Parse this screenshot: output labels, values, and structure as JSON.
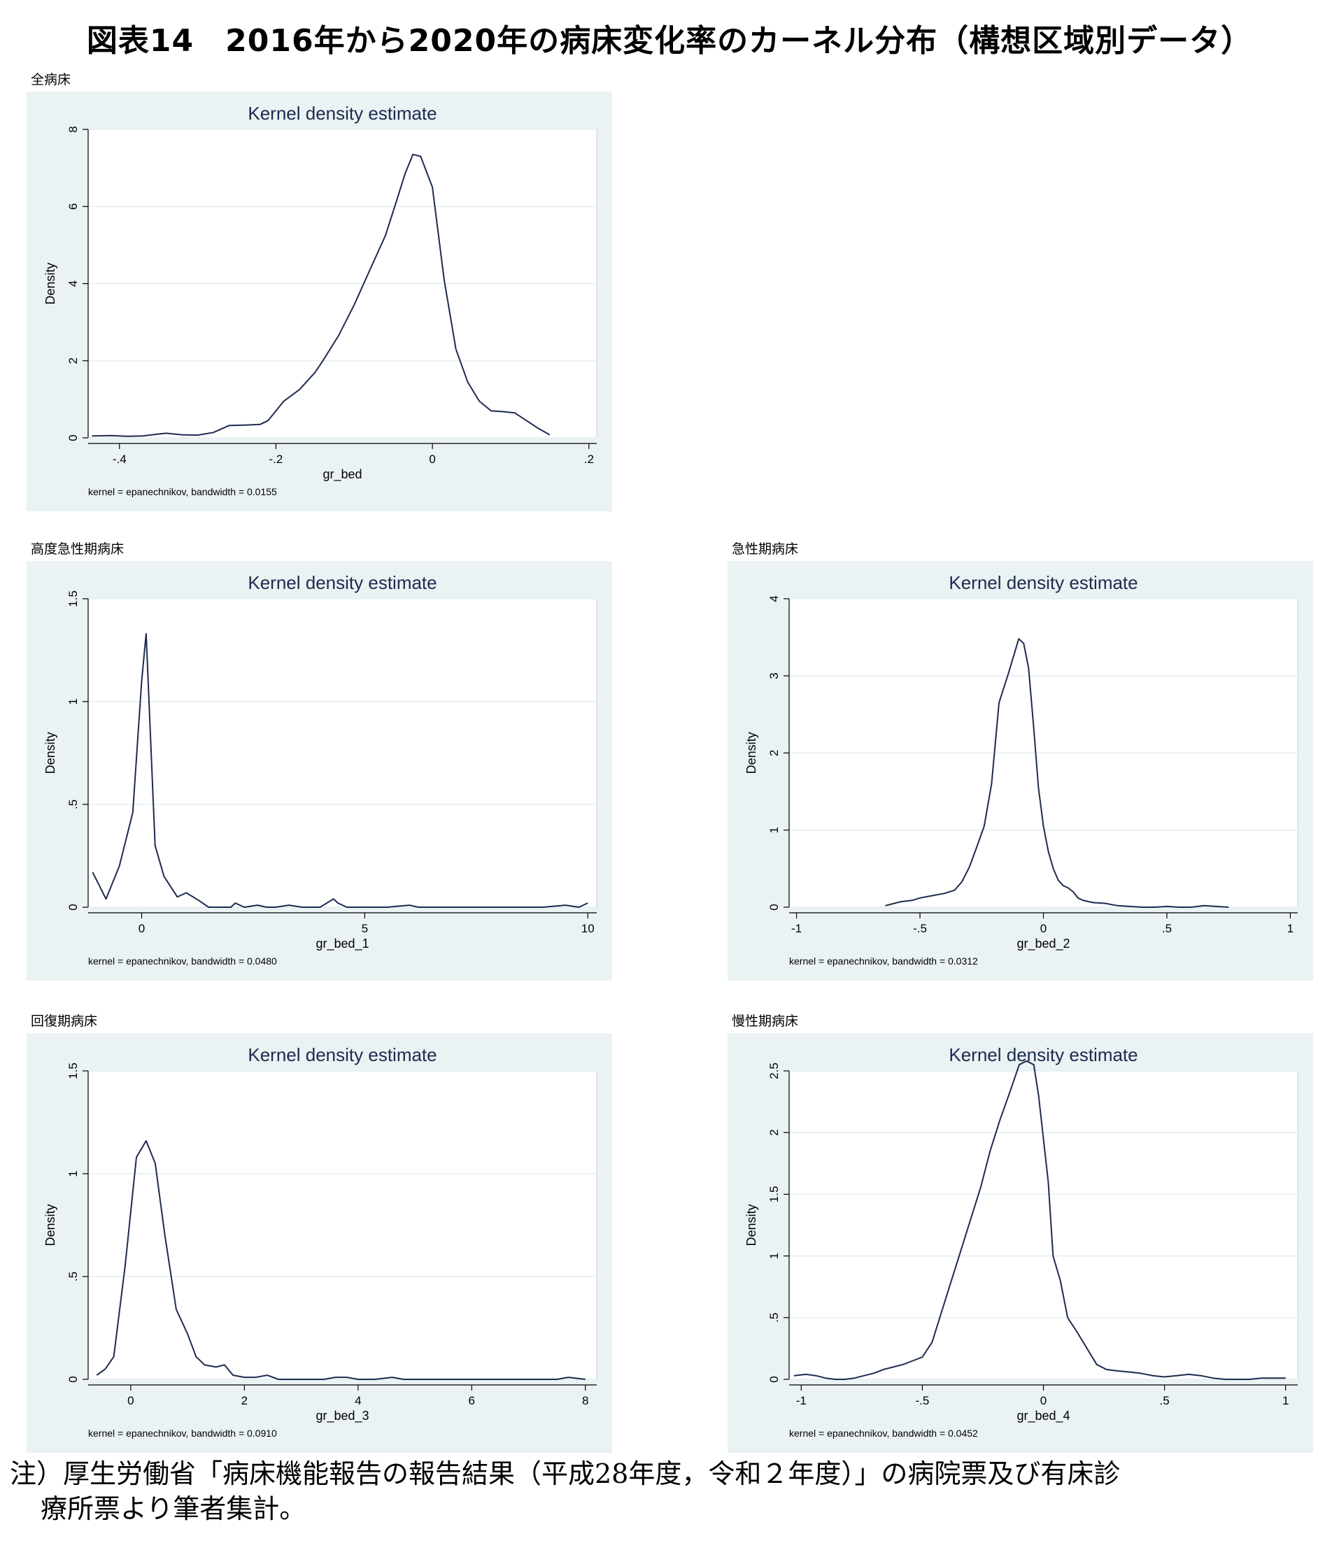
{
  "figure_title": "図表14　2016年から2020年の病床変化率のカーネル分布（構想区域別データ）",
  "note": {
    "line1": "注）厚生労働省「病床機能報告の報告結果（平成28年度，令和２年度）」の病院票及び有床診",
    "line2": "療所票より筆者集計。"
  },
  "colors": {
    "panel_bg": "#eaf2f3",
    "line": "#1d2b4f",
    "grid": "#e6eef0",
    "title": "#1d2b4f"
  },
  "chart_data": [
    {
      "label": "全病床",
      "type": "line",
      "title": "Kernel density estimate",
      "xlabel": "gr_bed",
      "ylabel": "Density",
      "caption": "kernel = epanechnikov, bandwidth = 0.0155",
      "xlim": [
        -0.44,
        0.21
      ],
      "ylim": [
        0,
        8
      ],
      "xticks": [
        {
          "v": -0.4,
          "l": "-.4"
        },
        {
          "v": -0.2,
          "l": "-.2"
        },
        {
          "v": 0,
          "l": "0"
        },
        {
          "v": 0.2,
          "l": ".2"
        }
      ],
      "yticks": [
        {
          "v": 0,
          "l": "0"
        },
        {
          "v": 2,
          "l": "2"
        },
        {
          "v": 4,
          "l": "4"
        },
        {
          "v": 6,
          "l": "6"
        },
        {
          "v": 8,
          "l": "8"
        }
      ],
      "x": [
        -0.435,
        -0.41,
        -0.39,
        -0.37,
        -0.35,
        -0.34,
        -0.32,
        -0.3,
        -0.28,
        -0.26,
        -0.24,
        -0.22,
        -0.21,
        -0.19,
        -0.17,
        -0.15,
        -0.14,
        -0.12,
        -0.1,
        -0.08,
        -0.06,
        -0.045,
        -0.035,
        -0.025,
        -0.015,
        0,
        0.015,
        0.03,
        0.045,
        0.06,
        0.075,
        0.09,
        0.105,
        0.12,
        0.135,
        0.15
      ],
      "y": [
        0.05,
        0.06,
        0.04,
        0.05,
        0.1,
        0.12,
        0.08,
        0.07,
        0.14,
        0.32,
        0.33,
        0.35,
        0.45,
        0.95,
        1.25,
        1.7,
        2.0,
        2.65,
        3.45,
        4.35,
        5.25,
        6.2,
        6.85,
        7.35,
        7.3,
        6.5,
        4.1,
        2.3,
        1.45,
        0.95,
        0.7,
        0.68,
        0.65,
        0.45,
        0.25,
        0.08
      ]
    },
    {
      "label": "高度急性期病床",
      "type": "line",
      "title": "Kernel density estimate",
      "xlabel": "gr_bed_1",
      "ylabel": "Density",
      "caption": "kernel = epanechnikov, bandwidth = 0.0480",
      "xlim": [
        -1.2,
        10.2
      ],
      "ylim": [
        0,
        1.5
      ],
      "xticks": [
        {
          "v": 0,
          "l": "0"
        },
        {
          "v": 5,
          "l": "5"
        },
        {
          "v": 10,
          "l": "10"
        }
      ],
      "yticks": [
        {
          "v": 0,
          "l": "0"
        },
        {
          "v": 0.5,
          "l": ".5"
        },
        {
          "v": 1,
          "l": "1"
        },
        {
          "v": 1.5,
          "l": "1.5"
        }
      ],
      "x": [
        -1.1,
        -0.8,
        -0.5,
        -0.2,
        0.0,
        0.1,
        0.3,
        0.5,
        0.8,
        1.0,
        1.3,
        1.5,
        2.0,
        2.1,
        2.3,
        2.6,
        2.8,
        3.0,
        3.3,
        3.6,
        4.0,
        4.3,
        4.4,
        4.6,
        5.0,
        5.5,
        6.0,
        6.2,
        7.0,
        8.0,
        9.0,
        9.5,
        9.8,
        10.0
      ],
      "y": [
        0.17,
        0.04,
        0.2,
        0.46,
        1.1,
        1.33,
        0.3,
        0.15,
        0.05,
        0.07,
        0.03,
        0.0,
        0.0,
        0.02,
        0.0,
        0.01,
        0.0,
        0.0,
        0.01,
        0.0,
        0.0,
        0.04,
        0.02,
        0.0,
        0.0,
        0.0,
        0.01,
        0.0,
        0.0,
        0.0,
        0.0,
        0.01,
        0.0,
        0.02
      ]
    },
    {
      "label": "急性期病床",
      "type": "line",
      "title": "Kernel density estimate",
      "xlabel": "gr_bed_2",
      "ylabel": "Density",
      "caption": "kernel = epanechnikov, bandwidth = 0.0312",
      "xlim": [
        -1.03,
        1.03
      ],
      "ylim": [
        0,
        4
      ],
      "xticks": [
        {
          "v": -1,
          "l": "-1"
        },
        {
          "v": -0.5,
          "l": "-.5"
        },
        {
          "v": 0,
          "l": "0"
        },
        {
          "v": 0.5,
          "l": ".5"
        },
        {
          "v": 1,
          "l": "1"
        }
      ],
      "yticks": [
        {
          "v": 0,
          "l": "0"
        },
        {
          "v": 1,
          "l": "1"
        },
        {
          "v": 2,
          "l": "2"
        },
        {
          "v": 3,
          "l": "3"
        },
        {
          "v": 4,
          "l": "4"
        }
      ],
      "x": [
        -0.64,
        -0.58,
        -0.53,
        -0.5,
        -0.45,
        -0.4,
        -0.36,
        -0.33,
        -0.3,
        -0.27,
        -0.24,
        -0.21,
        -0.18,
        -0.14,
        -0.1,
        -0.08,
        -0.06,
        -0.04,
        -0.02,
        0.0,
        0.02,
        0.04,
        0.06,
        0.08,
        0.1,
        0.12,
        0.14,
        0.16,
        0.2,
        0.25,
        0.3,
        0.35,
        0.4,
        0.45,
        0.5,
        0.55,
        0.6,
        0.65,
        0.7,
        0.75
      ],
      "y": [
        0.02,
        0.07,
        0.09,
        0.12,
        0.15,
        0.18,
        0.22,
        0.33,
        0.52,
        0.78,
        1.05,
        1.6,
        2.65,
        3.05,
        3.48,
        3.42,
        3.1,
        2.35,
        1.55,
        1.05,
        0.72,
        0.5,
        0.35,
        0.28,
        0.25,
        0.2,
        0.12,
        0.09,
        0.06,
        0.05,
        0.02,
        0.01,
        0.0,
        0.0,
        0.01,
        0.0,
        0.0,
        0.02,
        0.01,
        0.0
      ]
    },
    {
      "label": "回復期病床",
      "type": "line",
      "title": "Kernel density estimate",
      "xlabel": "gr_bed_3",
      "ylabel": "Density",
      "caption": "kernel = epanechnikov, bandwidth = 0.0910",
      "xlim": [
        -0.75,
        8.2
      ],
      "ylim": [
        0,
        1.5
      ],
      "xticks": [
        {
          "v": 0,
          "l": "0"
        },
        {
          "v": 2,
          "l": "2"
        },
        {
          "v": 4,
          "l": "4"
        },
        {
          "v": 6,
          "l": "6"
        },
        {
          "v": 8,
          "l": "8"
        }
      ],
      "yticks": [
        {
          "v": 0,
          "l": "0"
        },
        {
          "v": 0.5,
          "l": ".5"
        },
        {
          "v": 1,
          "l": "1"
        },
        {
          "v": 1.5,
          "l": "1.5"
        }
      ],
      "x": [
        -0.6,
        -0.45,
        -0.3,
        -0.1,
        0.1,
        0.27,
        0.43,
        0.6,
        0.8,
        1.0,
        1.15,
        1.3,
        1.5,
        1.65,
        1.8,
        2.0,
        2.2,
        2.4,
        2.6,
        3.0,
        3.4,
        3.6,
        3.8,
        4.0,
        4.3,
        4.6,
        4.8,
        5.0,
        6.0,
        7.0,
        7.5,
        7.7,
        8.0
      ],
      "y": [
        0.02,
        0.05,
        0.11,
        0.55,
        1.08,
        1.16,
        1.05,
        0.7,
        0.34,
        0.22,
        0.11,
        0.07,
        0.06,
        0.07,
        0.02,
        0.01,
        0.01,
        0.02,
        0.0,
        0.0,
        0.0,
        0.01,
        0.01,
        0.0,
        0.0,
        0.01,
        0.0,
        0.0,
        0.0,
        0.0,
        0.0,
        0.01,
        0.0
      ]
    },
    {
      "label": "慢性期病床",
      "type": "line",
      "title": "Kernel density estimate",
      "xlabel": "gr_bed_4",
      "ylabel": "Density",
      "caption": "kernel = epanechnikov, bandwidth = 0.0452",
      "xlim": [
        -1.05,
        1.05
      ],
      "ylim": [
        0,
        2.5
      ],
      "xticks": [
        {
          "v": -1,
          "l": "-1"
        },
        {
          "v": -0.5,
          "l": "-.5"
        },
        {
          "v": 0,
          "l": "0"
        },
        {
          "v": 0.5,
          "l": ".5"
        },
        {
          "v": 1,
          "l": "1"
        }
      ],
      "yticks": [
        {
          "v": 0,
          "l": "0"
        },
        {
          "v": 0.5,
          "l": ".5"
        },
        {
          "v": 1,
          "l": "1"
        },
        {
          "v": 1.5,
          "l": "1.5"
        },
        {
          "v": 2,
          "l": "2"
        },
        {
          "v": 2.5,
          "l": "2.5"
        }
      ],
      "x": [
        -1.03,
        -0.98,
        -0.94,
        -0.9,
        -0.86,
        -0.82,
        -0.78,
        -0.74,
        -0.7,
        -0.66,
        -0.62,
        -0.58,
        -0.54,
        -0.5,
        -0.46,
        -0.42,
        -0.38,
        -0.34,
        -0.3,
        -0.26,
        -0.22,
        -0.18,
        -0.14,
        -0.1,
        -0.07,
        -0.04,
        -0.02,
        0.02,
        0.04,
        0.07,
        0.1,
        0.14,
        0.18,
        0.22,
        0.26,
        0.3,
        0.35,
        0.4,
        0.45,
        0.5,
        0.55,
        0.6,
        0.65,
        0.7,
        0.75,
        0.8,
        0.85,
        0.9,
        0.95,
        1.0
      ],
      "y": [
        0.03,
        0.04,
        0.03,
        0.01,
        0.0,
        0.0,
        0.01,
        0.03,
        0.05,
        0.08,
        0.1,
        0.12,
        0.15,
        0.18,
        0.3,
        0.55,
        0.8,
        1.05,
        1.3,
        1.55,
        1.85,
        2.1,
        2.32,
        2.55,
        2.58,
        2.55,
        2.3,
        1.6,
        1.0,
        0.8,
        0.5,
        0.38,
        0.25,
        0.12,
        0.08,
        0.07,
        0.06,
        0.05,
        0.03,
        0.02,
        0.03,
        0.04,
        0.03,
        0.01,
        0.0,
        0.0,
        0.0,
        0.01,
        0.01,
        0.01
      ]
    }
  ]
}
